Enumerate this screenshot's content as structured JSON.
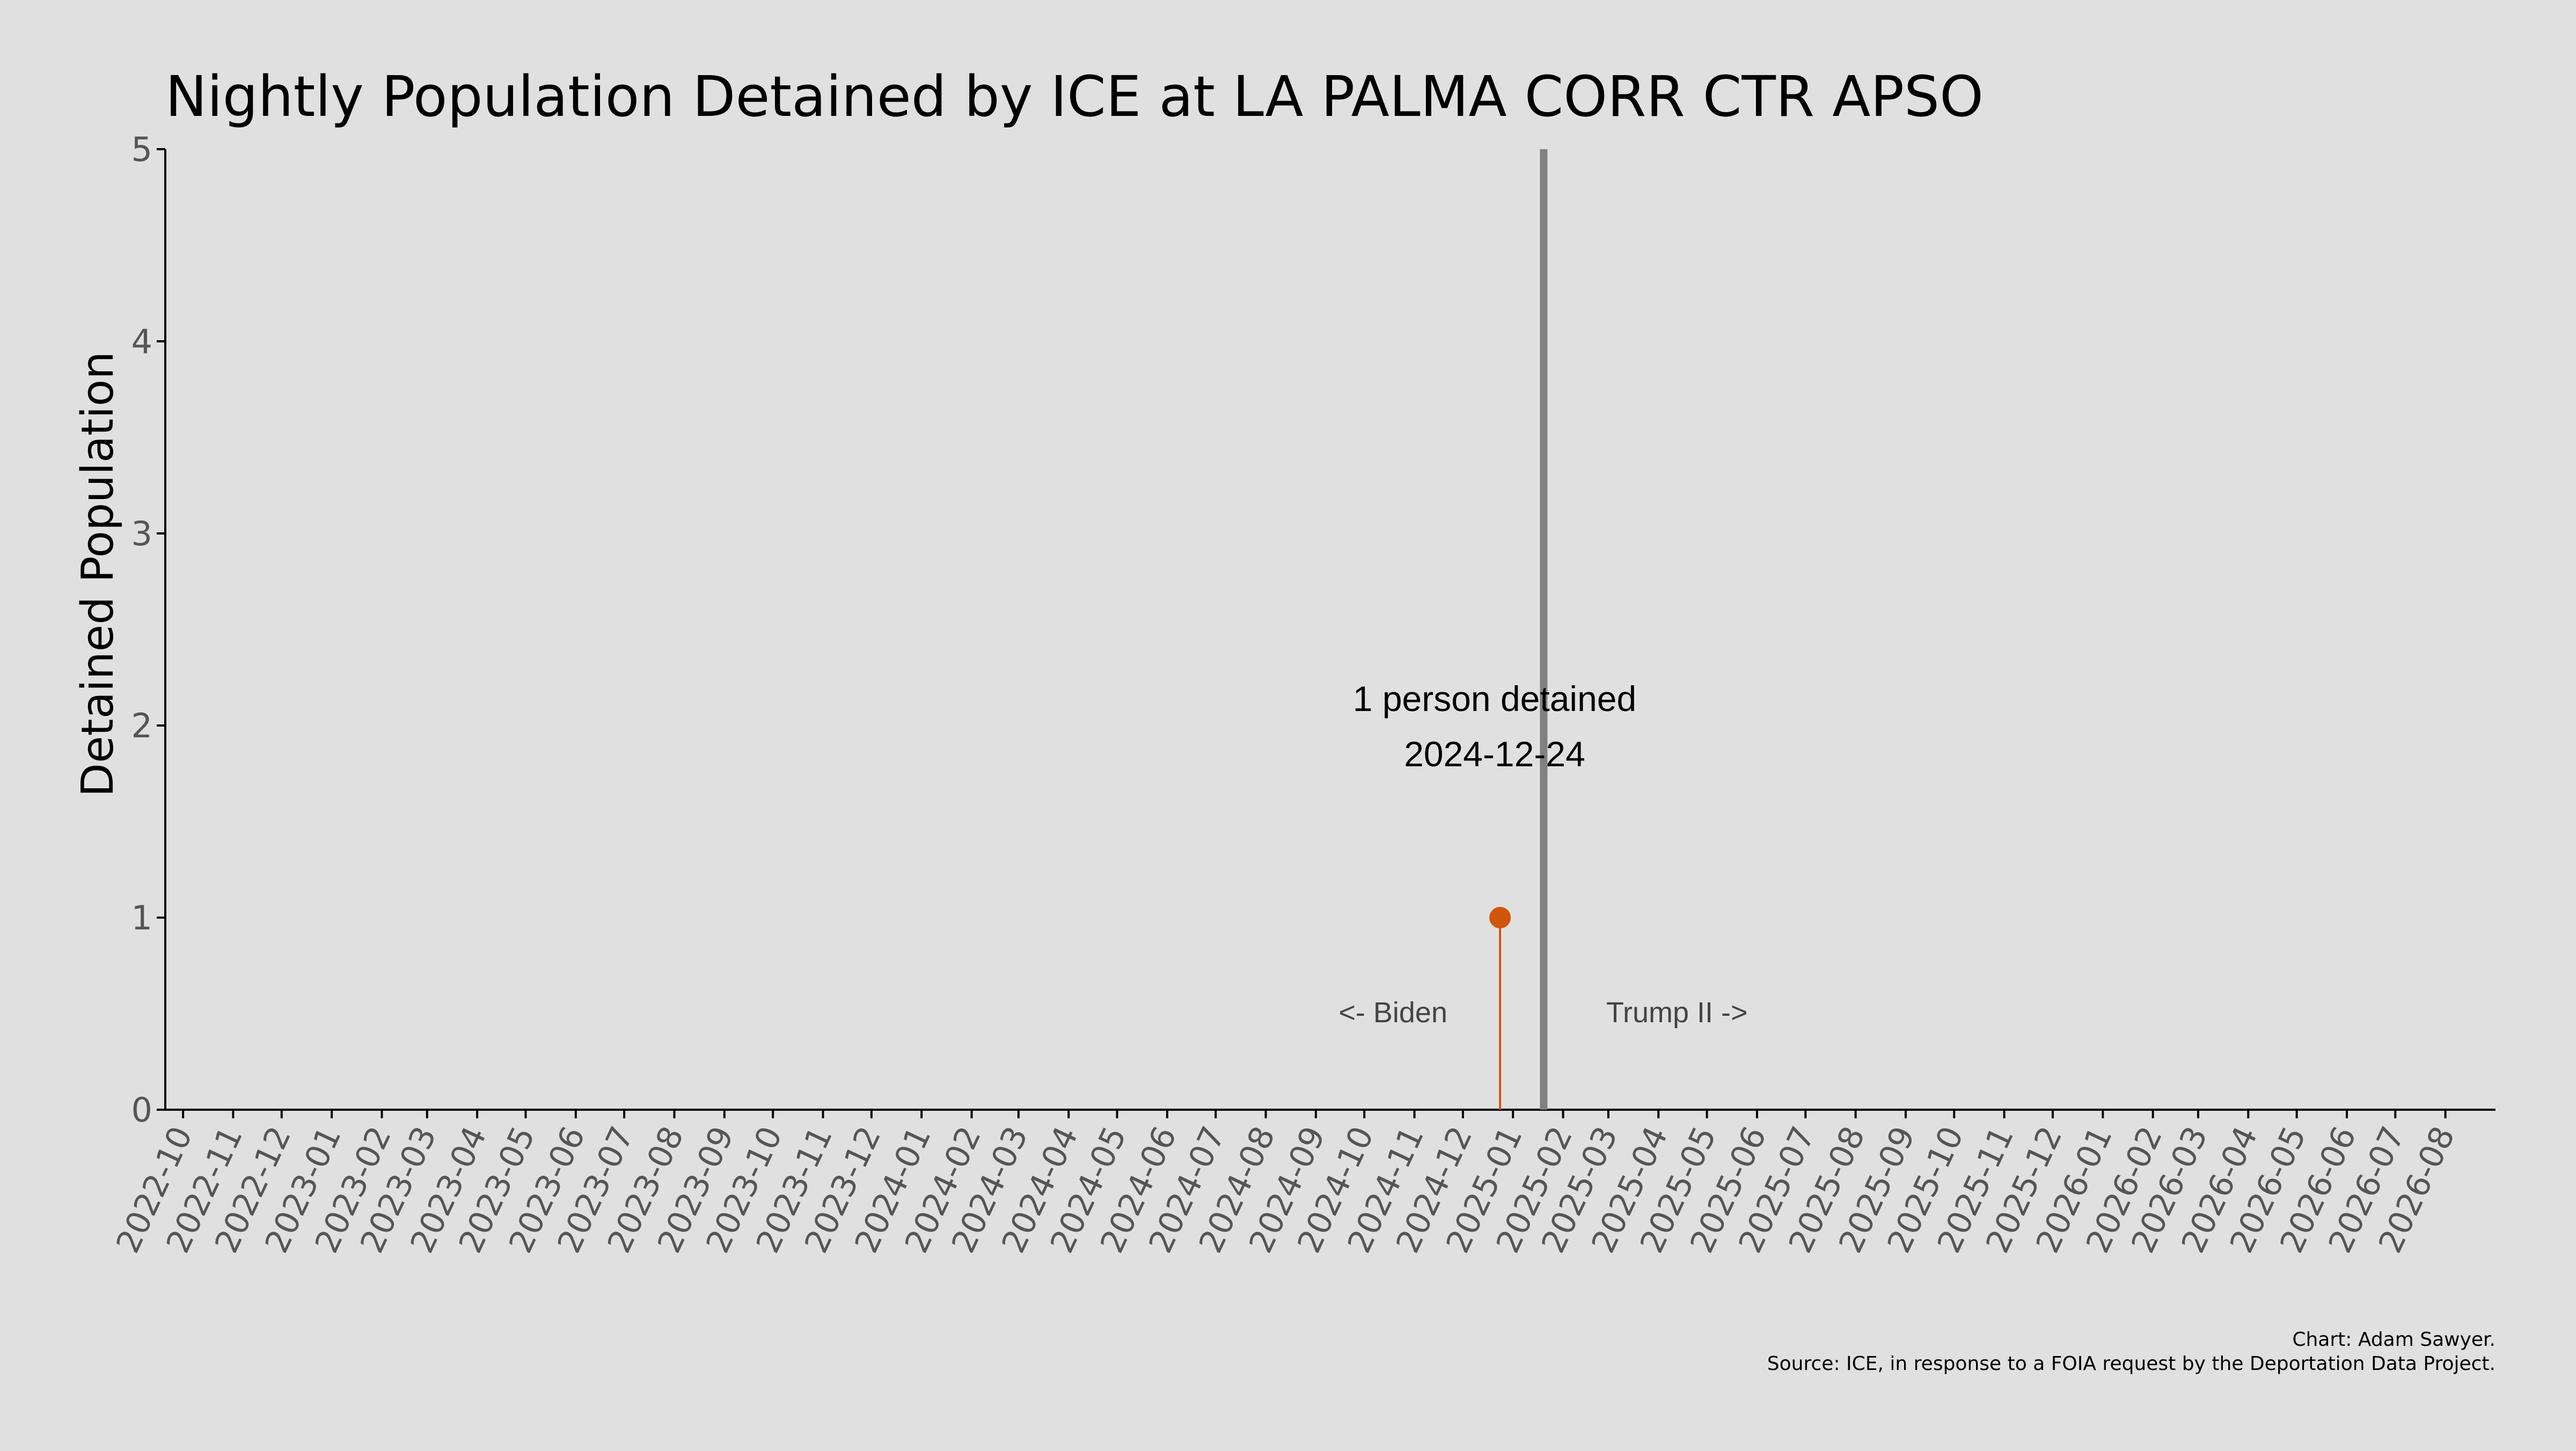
{
  "chart_data": {
    "type": "scatter",
    "title": "Nightly Population Detained by ICE at LA PALMA CORR CTR APSO",
    "xlabel": "",
    "ylabel": "Detained Population",
    "ylim": [
      0,
      5
    ],
    "yticks": [
      0,
      1,
      2,
      3,
      4,
      5
    ],
    "xlim": [
      "2022-09-20",
      "2026-09-01"
    ],
    "xticks": [
      "2022-10",
      "2022-11",
      "2022-12",
      "2023-01",
      "2023-02",
      "2023-03",
      "2023-04",
      "2023-05",
      "2023-06",
      "2023-07",
      "2023-08",
      "2023-09",
      "2023-10",
      "2023-11",
      "2023-12",
      "2024-01",
      "2024-02",
      "2024-03",
      "2024-04",
      "2024-05",
      "2024-06",
      "2024-07",
      "2024-08",
      "2024-09",
      "2024-10",
      "2024-11",
      "2024-12",
      "2025-01",
      "2025-02",
      "2025-03",
      "2025-04",
      "2025-05",
      "2025-06",
      "2025-07",
      "2025-08",
      "2025-09",
      "2025-10",
      "2025-11",
      "2025-12",
      "2026-01",
      "2026-02",
      "2026-03",
      "2026-04",
      "2026-05",
      "2026-06",
      "2026-07",
      "2026-08"
    ],
    "points": [
      {
        "x": "2024-12-24",
        "y": 1
      }
    ],
    "vline": {
      "x": "2025-01-20"
    },
    "annotation": {
      "line1": "1 person detained",
      "line2": "2024-12-24"
    },
    "era_labels": {
      "left": "<- Biden",
      "right": "Trump II ->"
    },
    "credit": "Chart: Adam Sawyer.",
    "source": "Source: ICE, in response to a FOIA request by the Deportation Data Project.",
    "grid": false,
    "colors": {
      "background": "#e0e0e0",
      "point": "#d1550a",
      "vline": "#808080",
      "axis": "#000000"
    }
  }
}
